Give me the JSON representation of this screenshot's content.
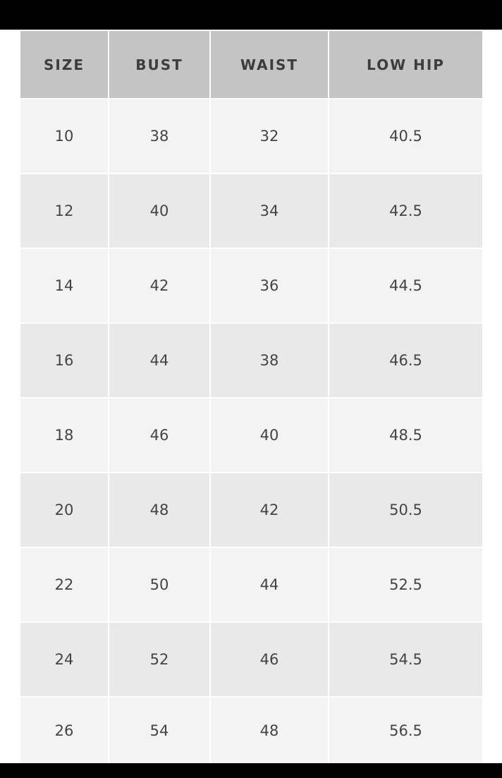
{
  "table": {
    "headers": [
      "SIZE",
      "BUST",
      "WAIST",
      "LOW HIP"
    ],
    "rows": [
      [
        "10",
        "38",
        "32",
        "40.5"
      ],
      [
        "12",
        "40",
        "34",
        "42.5"
      ],
      [
        "14",
        "42",
        "36",
        "44.5"
      ],
      [
        "16",
        "44",
        "38",
        "46.5"
      ],
      [
        "18",
        "46",
        "40",
        "48.5"
      ],
      [
        "20",
        "48",
        "42",
        "50.5"
      ],
      [
        "22",
        "50",
        "44",
        "52.5"
      ],
      [
        "24",
        "52",
        "46",
        "54.5"
      ],
      [
        "26",
        "54",
        "48",
        "56.5"
      ]
    ]
  },
  "colors": {
    "header_bg": "#c4c4c4",
    "row_light": "#f3f3f3",
    "row_dark": "#e9e9e9",
    "bars": "#000000"
  }
}
